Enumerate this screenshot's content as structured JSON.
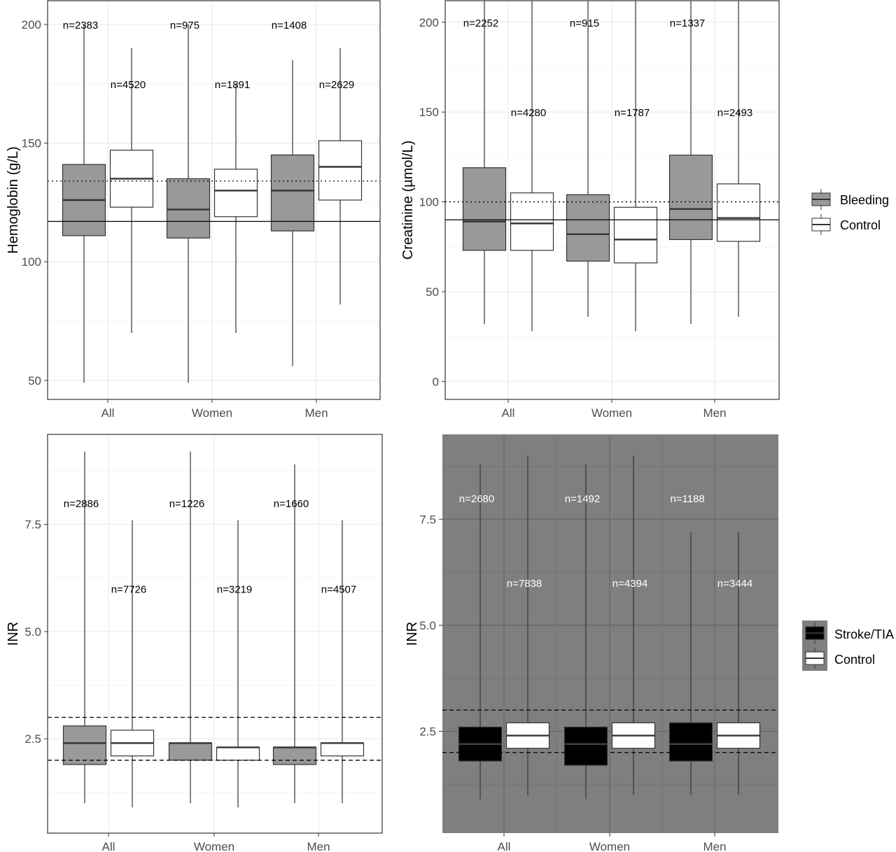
{
  "colors": {
    "bleeding_fill": "#999999",
    "control_fill": "#ffffff",
    "stroke_fill": "#000000",
    "dark_panel_bg": "#7f7f7f",
    "light_grid": "#ebebeb",
    "dark_grid": "#666666"
  },
  "legend_top": {
    "entries": [
      {
        "label": "Bleeding",
        "color": "#999999"
      },
      {
        "label": "Control",
        "color": "#ffffff"
      }
    ]
  },
  "legend_bottom": {
    "entries": [
      {
        "label": "Stroke/TIA",
        "color": "#000000"
      },
      {
        "label": "Control",
        "color": "#ffffff"
      }
    ]
  },
  "chart_data": [
    {
      "type": "box",
      "ylabel": "Hemoglobin (g/L)",
      "categories": [
        "All",
        "Women",
        "Men"
      ],
      "ylim": [
        42,
        210
      ],
      "yticks": [
        50,
        100,
        150,
        200
      ],
      "ytick_labels": [
        "50",
        "100",
        "150",
        "200"
      ],
      "grid": true,
      "reference_lines": [
        {
          "y": 117,
          "style": "solid"
        },
        {
          "y": 134,
          "style": "dotted"
        }
      ],
      "series": [
        {
          "name": "Bleeding",
          "n_labels": [
            "n=2383",
            "n=975",
            "n=1408"
          ],
          "n_label_y": 200,
          "boxes": [
            {
              "min": 49,
              "q1": 111,
              "median": 126,
              "q3": 141,
              "max": 200
            },
            {
              "min": 49,
              "q1": 110,
              "median": 122,
              "q3": 135,
              "max": 200
            },
            {
              "min": 56,
              "q1": 113,
              "median": 130,
              "q3": 145,
              "max": 185
            }
          ]
        },
        {
          "name": "Control",
          "n_labels": [
            "n=4520",
            "n=1891",
            "n=2629"
          ],
          "n_label_y": 175,
          "boxes": [
            {
              "min": 70,
              "q1": 123,
              "median": 135,
              "q3": 147,
              "max": 190
            },
            {
              "min": 70,
              "q1": 119,
              "median": 130,
              "q3": 139,
              "max": 175
            },
            {
              "min": 82,
              "q1": 126,
              "median": 140,
              "q3": 151,
              "max": 190
            }
          ]
        }
      ]
    },
    {
      "type": "box",
      "ylabel": "Creatinine (µmol/L)",
      "categories": [
        "All",
        "Women",
        "Men"
      ],
      "ylim": [
        -10,
        212
      ],
      "yticks": [
        0,
        50,
        100,
        150,
        200
      ],
      "ytick_labels": [
        "0",
        "50",
        "100",
        "150",
        "200"
      ],
      "grid": true,
      "reference_lines": [
        {
          "y": 90,
          "style": "solid"
        },
        {
          "y": 100,
          "style": "dotted"
        }
      ],
      "series": [
        {
          "name": "Bleeding",
          "n_labels": [
            "n=2252",
            "n=915",
            "n=1337"
          ],
          "n_label_y": 200,
          "boxes": [
            {
              "min": 32,
              "q1": 73,
              "median": 89,
              "q3": 119,
              "max": 212
            },
            {
              "min": 36,
              "q1": 67,
              "median": 82,
              "q3": 104,
              "max": 212
            },
            {
              "min": 32,
              "q1": 79,
              "median": 96,
              "q3": 126,
              "max": 212
            }
          ]
        },
        {
          "name": "Control",
          "n_labels": [
            "n=4280",
            "n=1787",
            "n=2493"
          ],
          "n_label_y": 150,
          "boxes": [
            {
              "min": 28,
              "q1": 73,
              "median": 88,
              "q3": 105,
              "max": 212
            },
            {
              "min": 28,
              "q1": 66,
              "median": 79,
              "q3": 97,
              "max": 212
            },
            {
              "min": 36,
              "q1": 78,
              "median": 91,
              "q3": 110,
              "max": 212
            }
          ]
        }
      ]
    },
    {
      "type": "box",
      "ylabel": "INR",
      "categories": [
        "All",
        "Women",
        "Men"
      ],
      "ylim": [
        0.3,
        9.6
      ],
      "yticks": [
        2.5,
        5.0,
        7.5
      ],
      "ytick_labels": [
        "2.5",
        "5.0",
        "7.5"
      ],
      "grid": true,
      "reference_lines": [
        {
          "y": 2.0,
          "style": "dashed"
        },
        {
          "y": 3.0,
          "style": "dashed"
        }
      ],
      "series": [
        {
          "name": "Bleeding",
          "n_labels": [
            "n=2886",
            "n=1226",
            "n=1660"
          ],
          "n_label_y": 8.0,
          "boxes": [
            {
              "min": 1.0,
              "q1": 1.9,
              "median": 2.4,
              "q3": 2.8,
              "max": 9.2
            },
            {
              "min": 1.0,
              "q1": 2.0,
              "median": 2.4,
              "q3": 2.4,
              "max": 9.2
            },
            {
              "min": 1.0,
              "q1": 1.9,
              "median": 2.3,
              "q3": 2.3,
              "max": 8.9
            }
          ]
        },
        {
          "name": "Control",
          "n_labels": [
            "n=7726",
            "n=3219",
            "n=4507"
          ],
          "n_label_y": 6.0,
          "boxes": [
            {
              "min": 0.9,
              "q1": 2.1,
              "median": 2.4,
              "q3": 2.7,
              "max": 7.6
            },
            {
              "min": 0.9,
              "q1": 2.0,
              "median": 2.3,
              "q3": 2.3,
              "max": 7.6
            },
            {
              "min": 1.0,
              "q1": 2.1,
              "median": 2.4,
              "q3": 2.4,
              "max": 7.6
            }
          ]
        }
      ]
    },
    {
      "type": "box",
      "ylabel": "INR",
      "categories": [
        "All",
        "Women",
        "Men"
      ],
      "ylim": [
        0.1,
        9.5
      ],
      "yticks": [
        2.5,
        5.0,
        7.5
      ],
      "ytick_labels": [
        "2.5",
        "5.0",
        "7.5"
      ],
      "grid": true,
      "reference_lines": [
        {
          "y": 2.0,
          "style": "dashed"
        },
        {
          "y": 3.0,
          "style": "dashed"
        }
      ],
      "series": [
        {
          "name": "Stroke/TIA",
          "n_labels": [
            "n=2680",
            "n=1492",
            "n=1188"
          ],
          "n_label_y": 8.0,
          "boxes": [
            {
              "min": 0.9,
              "q1": 1.8,
              "median": 2.2,
              "q3": 2.6,
              "max": 8.8
            },
            {
              "min": 0.9,
              "q1": 1.7,
              "median": 2.2,
              "q3": 2.6,
              "max": 8.8
            },
            {
              "min": 1.0,
              "q1": 1.8,
              "median": 2.2,
              "q3": 2.7,
              "max": 7.2
            }
          ]
        },
        {
          "name": "Control",
          "n_labels": [
            "n=7838",
            "n=4394",
            "n=3444"
          ],
          "n_label_y": 6.0,
          "boxes": [
            {
              "min": 1.0,
              "q1": 2.1,
              "median": 2.4,
              "q3": 2.7,
              "max": 9.0
            },
            {
              "min": 1.0,
              "q1": 2.1,
              "median": 2.4,
              "q3": 2.7,
              "max": 9.0
            },
            {
              "min": 1.0,
              "q1": 2.1,
              "median": 2.4,
              "q3": 2.7,
              "max": 7.2
            }
          ]
        }
      ]
    }
  ]
}
